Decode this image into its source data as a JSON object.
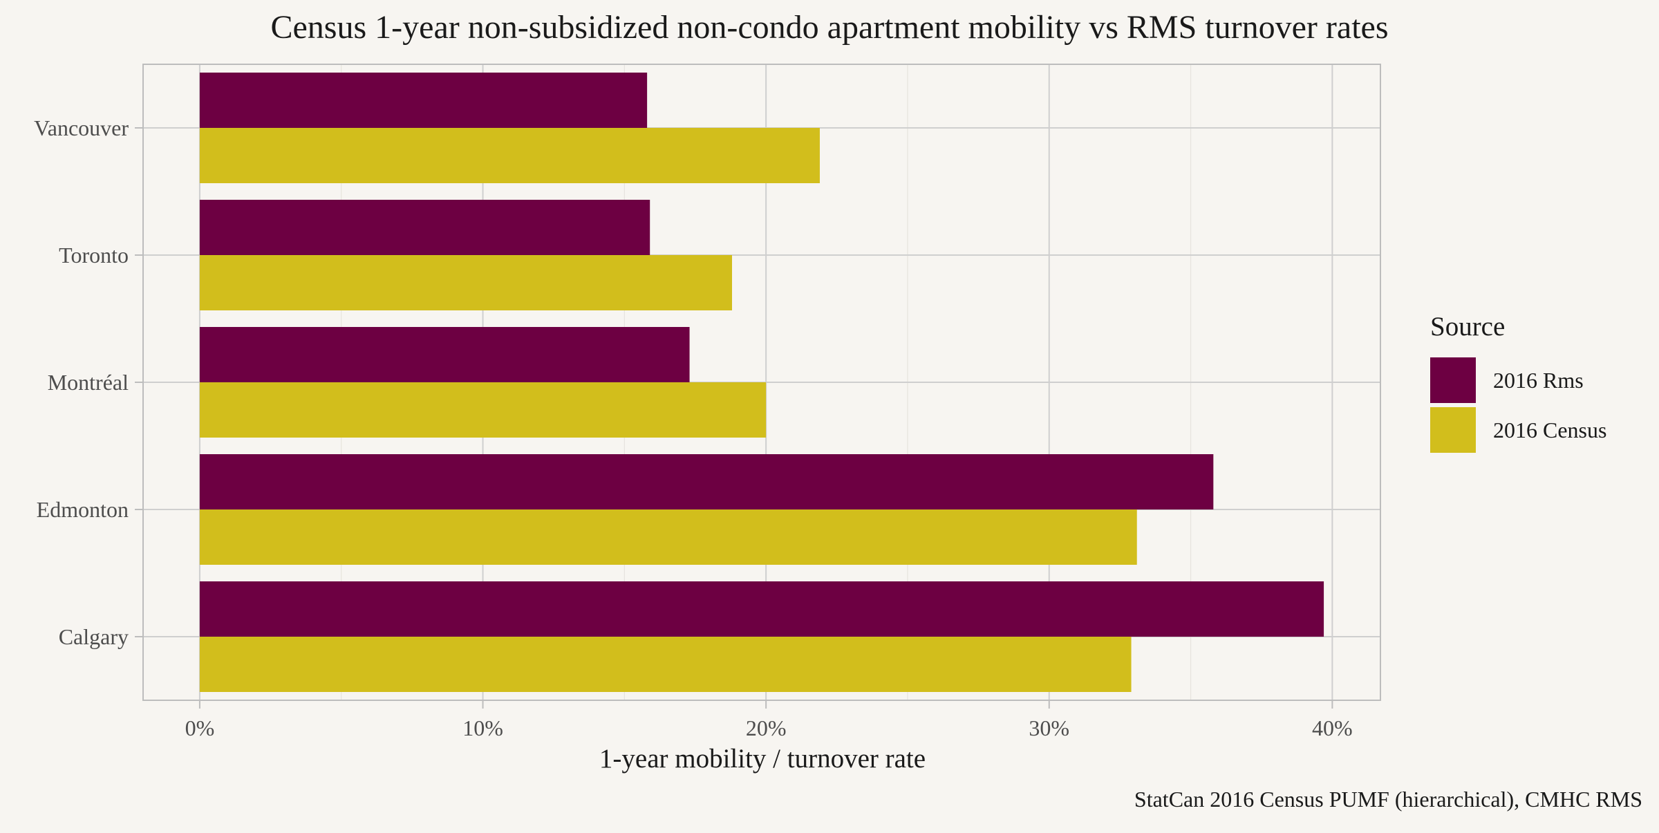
{
  "chart_data": {
    "type": "bar",
    "orientation": "horizontal",
    "title": "Census 1-year non-subsidized non-condo apartment mobility vs RMS turnover rates",
    "xlabel": "1-year mobility / turnover rate",
    "ylabel": "",
    "caption": "StatCan 2016 Census PUMF (hierarchical), CMHC RMS",
    "categories": [
      "Vancouver",
      "Toronto",
      "Montréal",
      "Edmonton",
      "Calgary"
    ],
    "series": [
      {
        "name": "2016 Rms",
        "color": "#6d0042",
        "values": [
          0.158,
          0.159,
          0.173,
          0.358,
          0.397
        ]
      },
      {
        "name": "2016 Census",
        "color": "#d2be1c",
        "values": [
          0.219,
          0.188,
          0.2,
          0.331,
          0.329
        ]
      }
    ],
    "xlim": [
      -0.02,
      0.417
    ],
    "x_ticks": [
      0,
      0.1,
      0.2,
      0.3,
      0.4
    ],
    "x_tick_labels": [
      "0%",
      "10%",
      "20%",
      "30%",
      "40%"
    ],
    "x_minor_ticks": [
      0.05,
      0.15,
      0.25,
      0.35
    ],
    "grid": true,
    "legend": {
      "title": "Source",
      "position": "right"
    },
    "colors": {
      "background": "#f7f5f1",
      "panel_border": "#bdbdbd",
      "grid_major": "#cfcfcf",
      "grid_minor": "#e6e3de"
    }
  }
}
